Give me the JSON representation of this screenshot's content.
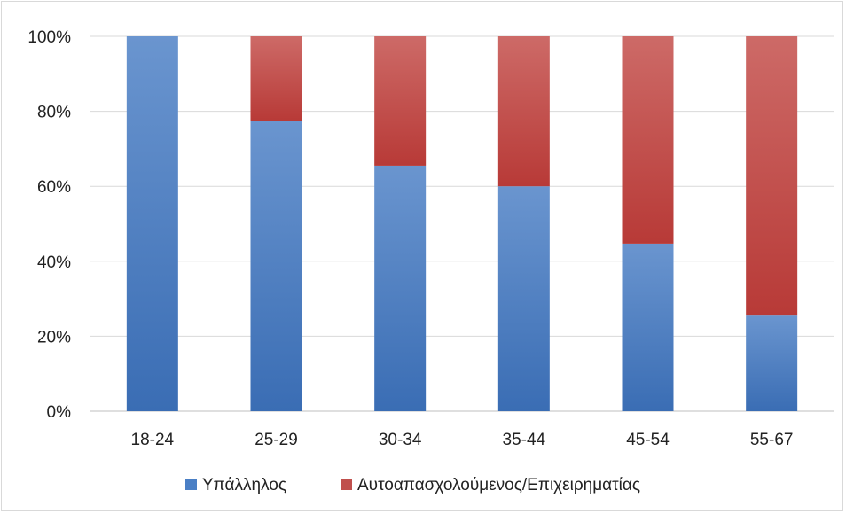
{
  "chart_data": {
    "type": "bar",
    "stacked": true,
    "percent": true,
    "title": "",
    "xlabel": "",
    "ylabel": "",
    "categories": [
      "18-24",
      "25-29",
      "30-34",
      "35-44",
      "45-54",
      "55-67"
    ],
    "series": [
      {
        "name": "Υπάλληλος",
        "color": "#4a7fc5",
        "values": [
          100,
          77.5,
          65.5,
          60.0,
          44.7,
          25.5
        ]
      },
      {
        "name": "Αυτοαπασχολούμενος/Επιχειρηματίας",
        "color": "#c0504d",
        "values": [
          0,
          22.5,
          34.5,
          40.0,
          55.3,
          74.5
        ]
      }
    ],
    "ylim": [
      0,
      100
    ],
    "yticks": [
      0,
      20,
      40,
      60,
      80,
      100
    ],
    "ytick_labels": [
      "0%",
      "20%",
      "40%",
      "60%",
      "80%",
      "100%"
    ],
    "grid": true,
    "legend_position": "bottom"
  }
}
